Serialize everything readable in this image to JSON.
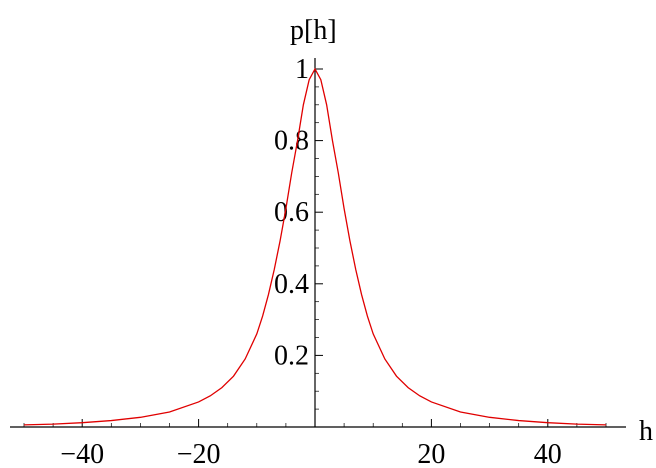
{
  "chart_data": {
    "type": "line",
    "xlabel": "h",
    "ylabel": "p[h]",
    "xlim": [
      -50,
      50
    ],
    "ylim": [
      0,
      1
    ],
    "x_ticks": [
      {
        "value": -40,
        "label": "−40"
      },
      {
        "value": -20,
        "label": "−20"
      },
      {
        "value": 20,
        "label": "20"
      },
      {
        "value": 40,
        "label": "40"
      }
    ],
    "y_ticks": [
      {
        "value": 0.2,
        "label": "0.2"
      },
      {
        "value": 0.4,
        "label": "0.4"
      },
      {
        "value": 0.6,
        "label": "0.6"
      },
      {
        "value": 0.8,
        "label": "0.8"
      },
      {
        "value": 1,
        "label": "1"
      }
    ],
    "grid": false,
    "line_color": "#e00000",
    "series": [
      {
        "x": [
          -50,
          -45,
          -40,
          -35,
          -30,
          -25,
          -20,
          -18,
          -16,
          -14,
          -12,
          -10,
          -9,
          -8,
          -7,
          -6,
          -5,
          -4,
          -3,
          -2,
          -1,
          0,
          1,
          2,
          3,
          4,
          5,
          6,
          7,
          8,
          9,
          10,
          12,
          14,
          16,
          18,
          20,
          25,
          30,
          35,
          40,
          45,
          50
        ],
        "y": [
          0.006,
          0.008,
          0.012,
          0.018,
          0.027,
          0.042,
          0.07,
          0.087,
          0.11,
          0.142,
          0.19,
          0.26,
          0.31,
          0.37,
          0.44,
          0.52,
          0.61,
          0.71,
          0.8,
          0.9,
          0.97,
          1.0,
          0.97,
          0.9,
          0.8,
          0.71,
          0.61,
          0.52,
          0.44,
          0.37,
          0.31,
          0.26,
          0.19,
          0.142,
          0.11,
          0.087,
          0.07,
          0.042,
          0.027,
          0.018,
          0.012,
          0.008,
          0.006
        ]
      }
    ]
  }
}
